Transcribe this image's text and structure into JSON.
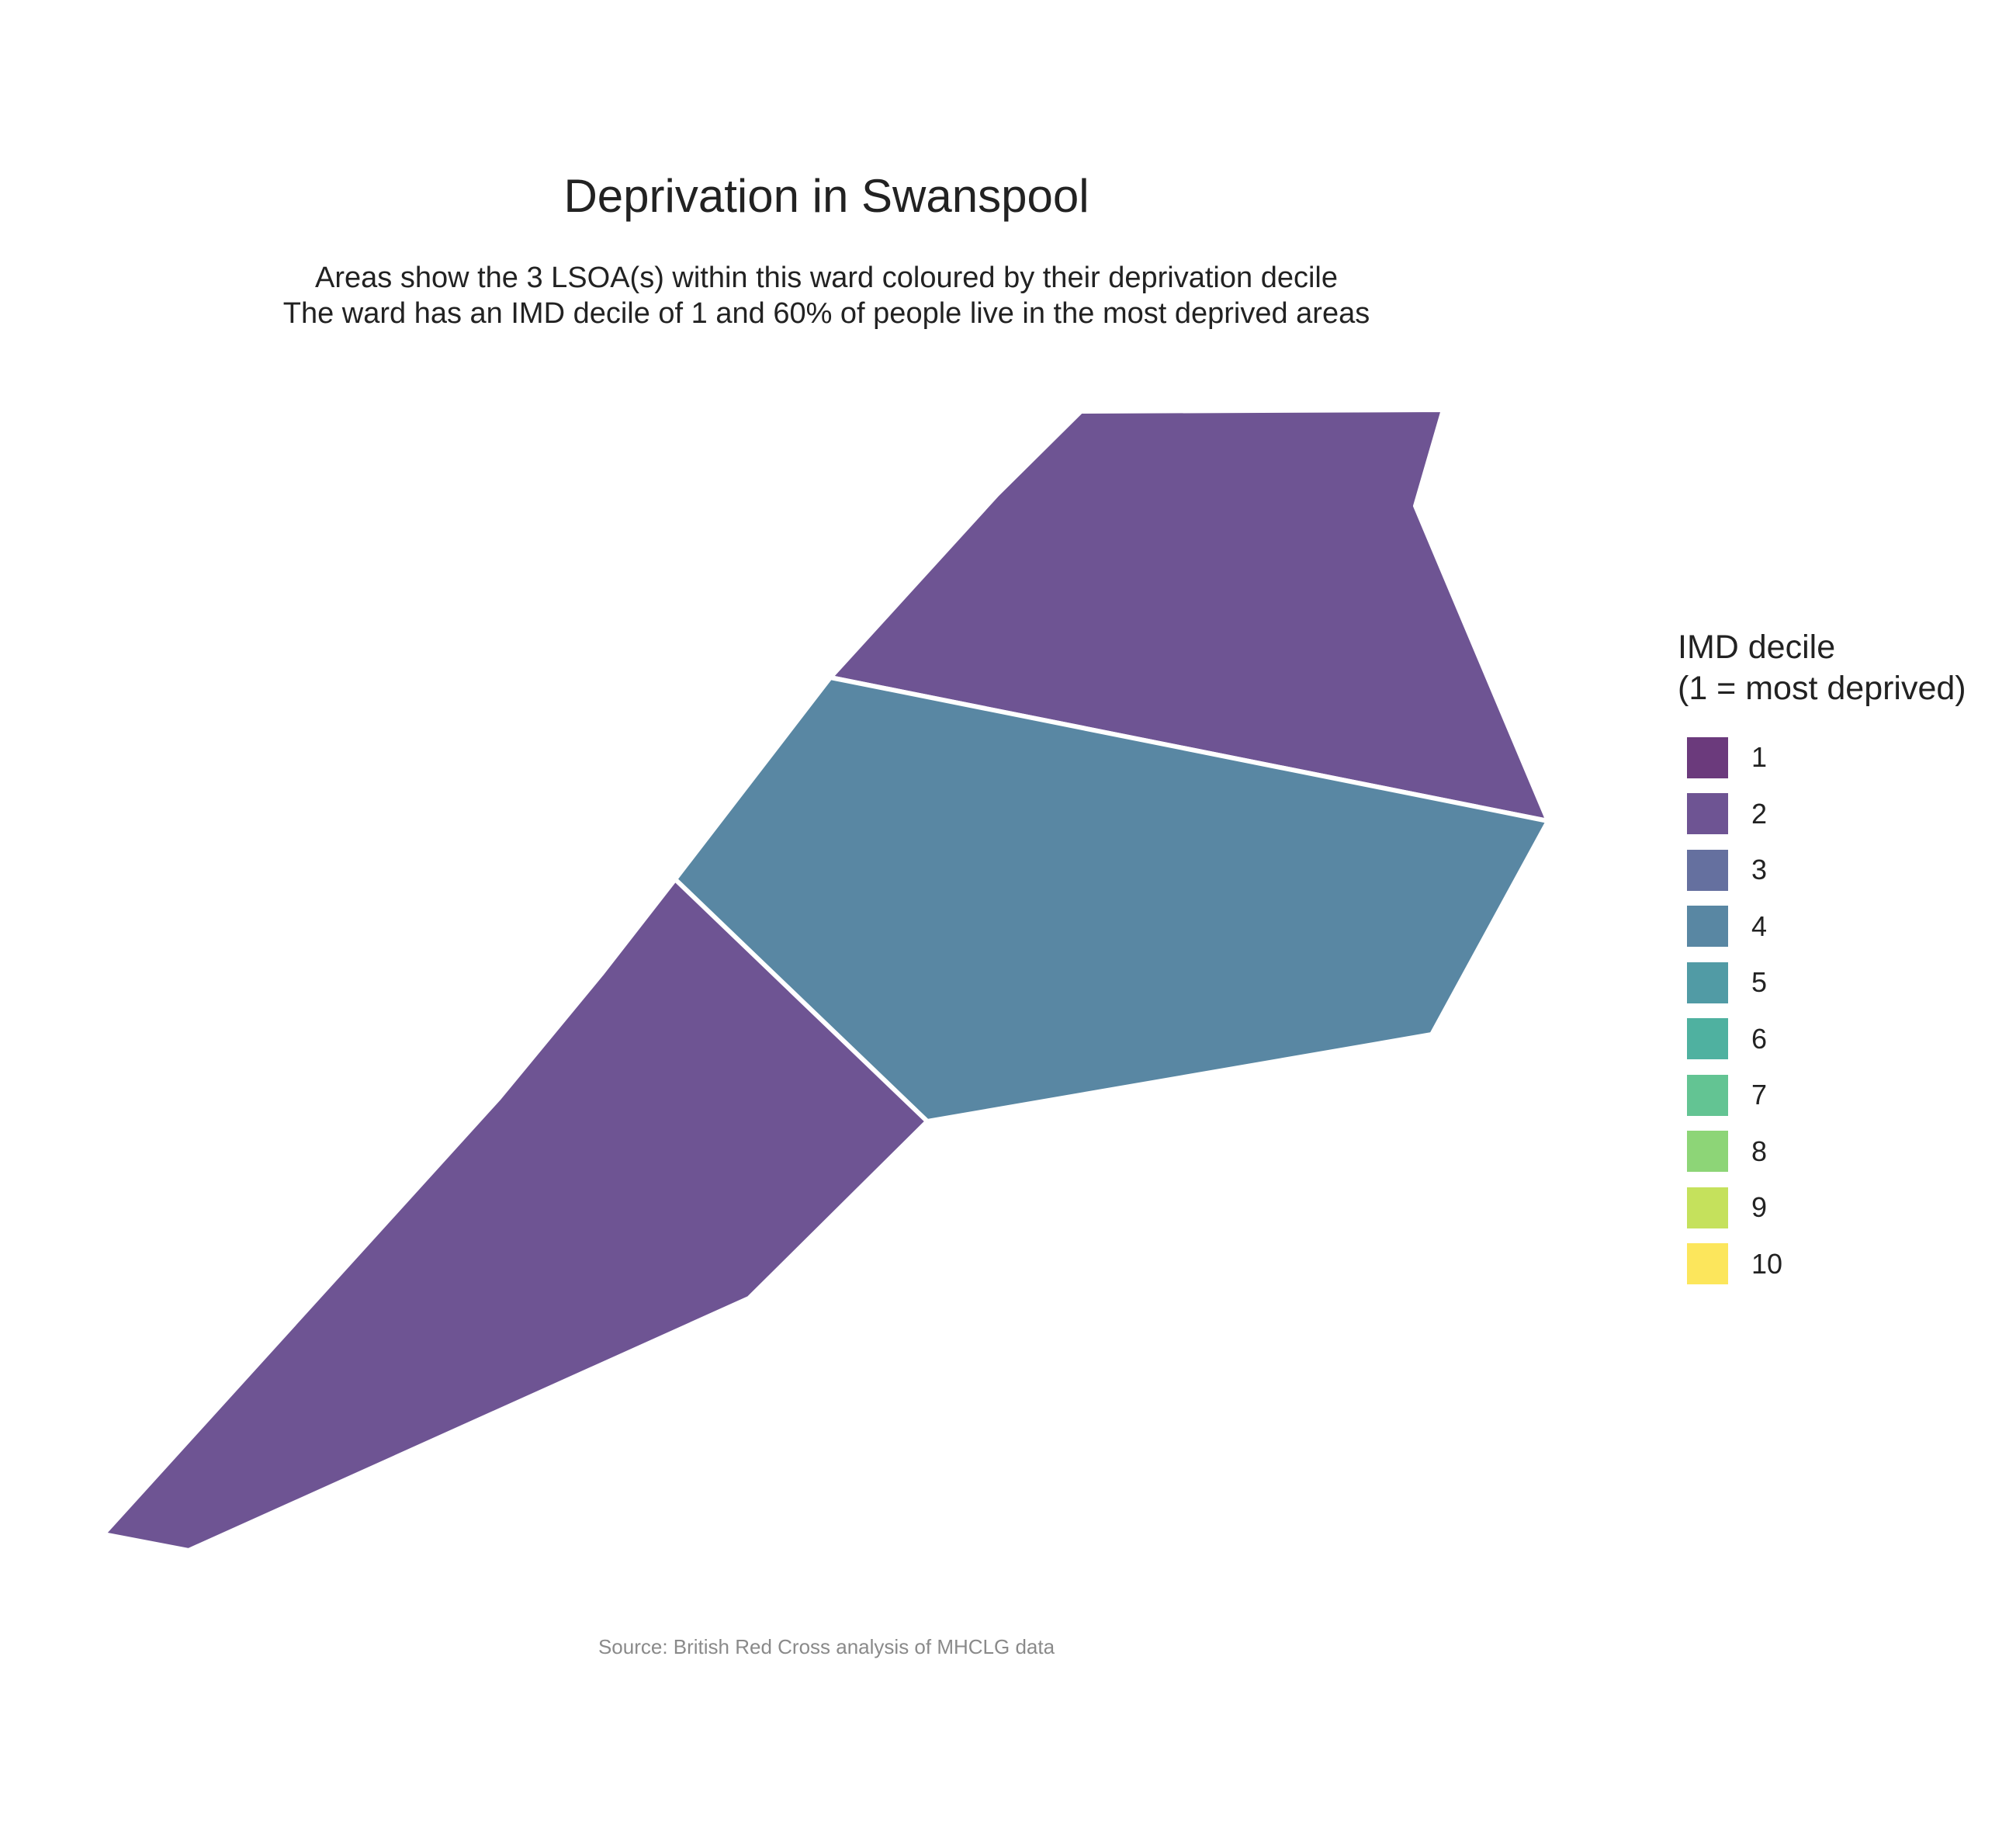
{
  "title": "Deprivation in Swanspool",
  "subtitle": [
    "Areas show the 3 LSOA(s) within this ward coloured by their deprivation decile",
    "The ward has an IMD decile of 1 and 60% of people live in the most deprived areas"
  ],
  "legend": {
    "title_lines": [
      "IMD decile",
      "(1 = most deprived)"
    ],
    "items": [
      {
        "label": "1",
        "color": "#6b3a7c"
      },
      {
        "label": "2",
        "color": "#6e5493"
      },
      {
        "label": "3",
        "color": "#65709f"
      },
      {
        "label": "4",
        "color": "#5987a3"
      },
      {
        "label": "5",
        "color": "#519ba5"
      },
      {
        "label": "6",
        "color": "#4fb1a0"
      },
      {
        "label": "7",
        "color": "#63c493"
      },
      {
        "label": "8",
        "color": "#8dd577"
      },
      {
        "label": "9",
        "color": "#c5e15c"
      },
      {
        "label": "10",
        "color": "#fce65c"
      }
    ]
  },
  "areas": [
    {
      "decile": 2,
      "color": "#6e5493"
    },
    {
      "decile": 4,
      "color": "#5987a3"
    },
    {
      "decile": 2,
      "color": "#6e5493"
    }
  ],
  "caption": "Source: British Red Cross analysis of MHCLG data"
}
